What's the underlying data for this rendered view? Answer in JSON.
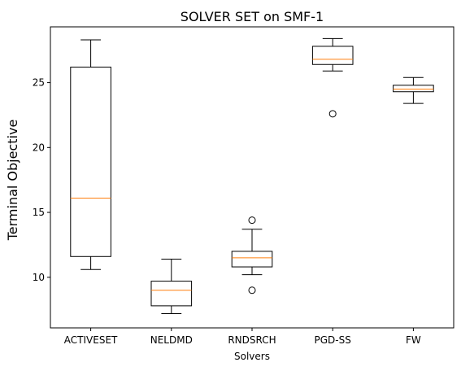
{
  "chart_data": {
    "type": "box",
    "title": "SOLVER SET on SMF-1",
    "xlabel": "Solvers",
    "ylabel": "Terminal Objective",
    "ylim": [
      6.1,
      29.3
    ],
    "yticks": [
      10,
      15,
      20,
      25
    ],
    "grid": false,
    "categories": [
      "ACTIVESET",
      "NELDMD",
      "RNDSRCH",
      "PGD-SS",
      "FW"
    ],
    "boxes": [
      {
        "category": "ACTIVESET",
        "whisker_low": 10.6,
        "q1": 11.6,
        "median": 16.1,
        "q3": 26.2,
        "whisker_high": 28.3,
        "outliers": []
      },
      {
        "category": "NELDMD",
        "whisker_low": 7.2,
        "q1": 7.8,
        "median": 9.0,
        "q3": 9.7,
        "whisker_high": 11.4,
        "outliers": []
      },
      {
        "category": "RNDSRCH",
        "whisker_low": 10.2,
        "q1": 10.8,
        "median": 11.5,
        "q3": 12.0,
        "whisker_high": 13.7,
        "outliers": [
          14.4,
          9.0
        ]
      },
      {
        "category": "PGD-SS",
        "whisker_low": 25.9,
        "q1": 26.4,
        "median": 26.8,
        "q3": 27.8,
        "whisker_high": 28.4,
        "outliers": [
          22.6
        ]
      },
      {
        "category": "FW",
        "whisker_low": 23.4,
        "q1": 24.3,
        "median": 24.5,
        "q3": 24.8,
        "whisker_high": 25.4,
        "outliers": []
      }
    ],
    "colors": {
      "box": "#000000",
      "median": "#ff7f0e",
      "background": "#ffffff"
    }
  }
}
